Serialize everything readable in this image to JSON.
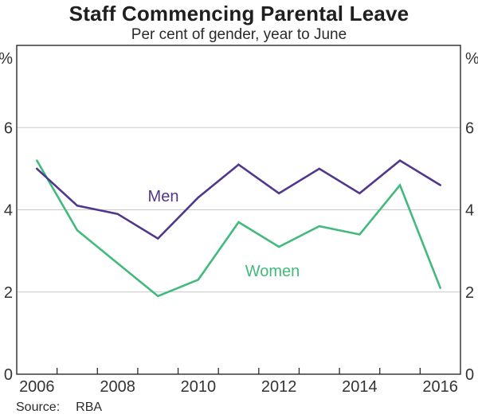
{
  "header": {
    "title": "Staff Commencing Parental Leave",
    "subtitle": "Per cent of gender, year to June"
  },
  "footer": {
    "source_label": "Source:",
    "source_value": "RBA"
  },
  "chart_data": {
    "type": "line",
    "title": "Staff Commencing Parental Leave",
    "subtitle": "Per cent of gender, year to June",
    "x": [
      2006,
      2007,
      2008,
      2009,
      2010,
      2011,
      2012,
      2013,
      2014,
      2015,
      2016
    ],
    "series": [
      {
        "name": "Men",
        "color": "#50378C",
        "values": [
          5.0,
          4.1,
          3.9,
          3.3,
          4.3,
          5.1,
          4.4,
          5.0,
          4.4,
          5.2,
          4.6
        ]
      },
      {
        "name": "Women",
        "color": "#41BA7B",
        "values": [
          5.2,
          3.5,
          2.7,
          1.9,
          2.3,
          3.7,
          3.1,
          3.6,
          3.4,
          4.6,
          2.1
        ]
      }
    ],
    "ylim": [
      0,
      8
    ],
    "y_unit": "%",
    "y_unit_both_sides": true,
    "yticks_labeled": [
      0,
      2,
      4,
      6
    ],
    "gridlines": [
      2,
      4,
      6
    ],
    "x_axis_start": 2006,
    "x_axis_end": 2017,
    "x_tick_years": [
      2007,
      2008,
      2009,
      2010,
      2011,
      2012,
      2013,
      2014,
      2015,
      2016
    ],
    "x_tick_labels": [
      "2006",
      "2008",
      "2010",
      "2012",
      "2014",
      "2016"
    ],
    "grid": "horizontal",
    "legend_position": "inline-labels",
    "series_label_anchors": [
      {
        "name": "Men",
        "x": 205,
        "y": 253
      },
      {
        "name": "Women",
        "x": 342,
        "y": 347
      }
    ],
    "axis_color": "#2b2b2b",
    "gridline_color": "#c8c8c8",
    "tick_label_color": "#333333"
  }
}
